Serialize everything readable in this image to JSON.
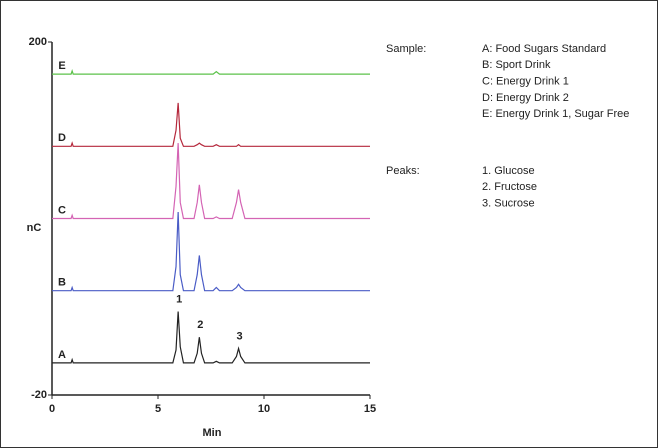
{
  "chart_data": {
    "type": "line",
    "x_label": "Min",
    "y_label": "nC",
    "xlim": [
      0,
      15
    ],
    "xticks": [
      0,
      5,
      10,
      15
    ],
    "ylim": [
      -20,
      200
    ],
    "yticks": [
      -20,
      200
    ],
    "x": [
      0,
      0.9,
      0.95,
      1.0,
      1.05,
      5.7,
      5.85,
      5.95,
      6.05,
      6.2,
      6.7,
      6.85,
      6.95,
      7.05,
      7.2,
      7.6,
      7.75,
      7.9,
      8.5,
      8.7,
      8.8,
      8.9,
      9.1,
      15
    ],
    "series": [
      {
        "name": "A",
        "color": "#222222",
        "values": [
          0,
          0,
          2,
          0,
          0,
          0,
          8,
          32,
          10,
          0,
          0,
          6,
          16,
          6,
          0,
          0,
          1,
          0,
          0,
          4,
          9,
          4,
          0,
          0
        ]
      },
      {
        "name": "B",
        "color": "#4a5cc6",
        "values": [
          45,
          45,
          47,
          45,
          45,
          45,
          60,
          94,
          55,
          45,
          45,
          55,
          67,
          55,
          45,
          45,
          47,
          45,
          45,
          47,
          49,
          47,
          45,
          45
        ]
      },
      {
        "name": "C",
        "color": "#d464b4",
        "values": [
          90,
          90,
          92,
          90,
          90,
          90,
          110,
          137,
          100,
          90,
          90,
          100,
          111,
          100,
          90,
          90,
          91,
          90,
          90,
          100,
          108,
          100,
          90,
          90
        ]
      },
      {
        "name": "D",
        "color": "#b5283c",
        "values": [
          135,
          135,
          137,
          135,
          135,
          135,
          145,
          162,
          140,
          135,
          135,
          136,
          137,
          136,
          135,
          135,
          136,
          135,
          135,
          135,
          136,
          135,
          135,
          135
        ]
      },
      {
        "name": "E",
        "color": "#5cc24a",
        "values": [
          180,
          180,
          182,
          180,
          180,
          180,
          180,
          180,
          180,
          180,
          180,
          180,
          180,
          180,
          180,
          180,
          181.5,
          180,
          180,
          180,
          180,
          180,
          180,
          180
        ]
      }
    ],
    "annotations": [
      {
        "text": "1",
        "x": 5.95
      },
      {
        "text": "2",
        "x": 6.95
      },
      {
        "text": "3",
        "x": 8.8
      }
    ],
    "sample_title": "Sample:",
    "samples": [
      "A: Food Sugars Standard",
      "B: Sport Drink",
      "C: Energy Drink 1",
      "D: Energy Drink 2",
      "E: Energy Drink 1, Sugar Free"
    ],
    "peaks_title": "Peaks:",
    "peaks": [
      "1. Glucose",
      "2. Fructose",
      "3. Sucrose"
    ]
  }
}
